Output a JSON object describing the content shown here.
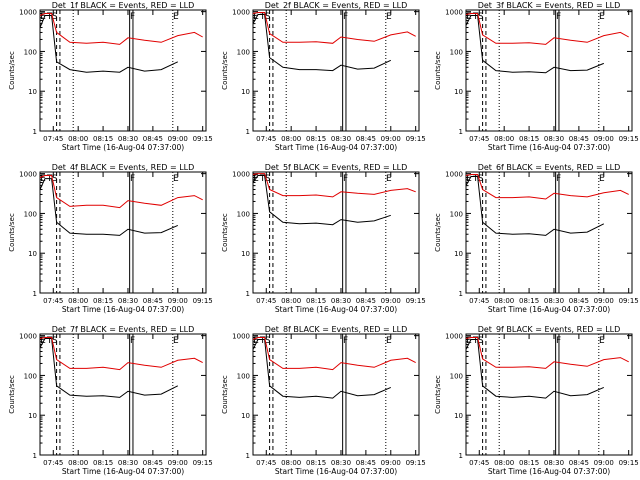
{
  "figure": {
    "xlabel": "Start Time (16-Aug-04 07:37:00)",
    "ylabel": "Counts/sec",
    "x_tick_labels": [
      "07:45",
      "08:00",
      "08:15",
      "08:30",
      "08:45",
      "09:00",
      "09:15"
    ],
    "y_tick_labels": [
      "1",
      "10",
      "100",
      "1000"
    ],
    "event_markers": [
      "E",
      "T",
      "S",
      "F",
      "E"
    ],
    "colors": {
      "events": "#000000",
      "lld": "#e00000"
    }
  },
  "chart_data": [
    {
      "type": "line",
      "title": "Det_1f BLACK = Events, RED = LLD",
      "x": [
        "07:37",
        "07:40",
        "07:44",
        "07:47",
        "07:55",
        "08:05",
        "08:15",
        "08:25",
        "08:30",
        "08:40",
        "08:50",
        "09:00",
        "09:10",
        "09:15"
      ],
      "xlim": [
        "07:37",
        "09:17"
      ],
      "ylim": [
        1,
        1100
      ],
      "yscale": "log",
      "series": [
        {
          "name": "Events",
          "values": [
            400,
            800,
            800,
            55,
            35,
            30,
            32,
            30,
            40,
            32,
            35,
            55,
            null,
            null
          ]
        },
        {
          "name": "LLD",
          "values": [
            800,
            900,
            900,
            300,
            170,
            160,
            170,
            150,
            220,
            190,
            170,
            250,
            300,
            230
          ]
        }
      ]
    },
    {
      "type": "line",
      "title": "Det_2f BLACK = Events, RED = LLD",
      "x": [
        "07:37",
        "07:40",
        "07:44",
        "07:47",
        "07:55",
        "08:05",
        "08:15",
        "08:25",
        "08:30",
        "08:40",
        "08:50",
        "09:00",
        "09:10",
        "09:15"
      ],
      "xlim": [
        "07:37",
        "09:17"
      ],
      "ylim": [
        1,
        1100
      ],
      "yscale": "log",
      "series": [
        {
          "name": "Events",
          "values": [
            500,
            850,
            850,
            70,
            40,
            35,
            35,
            33,
            45,
            36,
            38,
            60,
            null,
            null
          ]
        },
        {
          "name": "LLD",
          "values": [
            900,
            950,
            950,
            280,
            170,
            170,
            175,
            160,
            230,
            200,
            180,
            260,
            310,
            240
          ]
        }
      ]
    },
    {
      "type": "line",
      "title": "Det_3f BLACK = Events, RED = LLD",
      "x": [
        "07:37",
        "07:40",
        "07:44",
        "07:47",
        "07:55",
        "08:05",
        "08:15",
        "08:25",
        "08:30",
        "08:40",
        "08:50",
        "09:00",
        "09:10",
        "09:15"
      ],
      "xlim": [
        "07:37",
        "09:17"
      ],
      "ylim": [
        1,
        1100
      ],
      "yscale": "log",
      "series": [
        {
          "name": "Events",
          "values": [
            450,
            800,
            800,
            60,
            33,
            30,
            31,
            29,
            40,
            33,
            34,
            50,
            null,
            null
          ]
        },
        {
          "name": "LLD",
          "values": [
            850,
            900,
            900,
            260,
            160,
            160,
            165,
            150,
            220,
            190,
            170,
            250,
            300,
            230
          ]
        }
      ]
    },
    {
      "type": "line",
      "title": "Det_4f BLACK = Events, RED = LLD",
      "x": [
        "07:37",
        "07:40",
        "07:44",
        "07:47",
        "07:55",
        "08:05",
        "08:15",
        "08:25",
        "08:30",
        "08:40",
        "08:50",
        "09:00",
        "09:10",
        "09:15"
      ],
      "xlim": [
        "07:37",
        "09:17"
      ],
      "ylim": [
        1,
        1100
      ],
      "yscale": "log",
      "series": [
        {
          "name": "Events",
          "values": [
            400,
            750,
            750,
            60,
            32,
            30,
            30,
            28,
            40,
            32,
            33,
            50,
            null,
            null
          ]
        },
        {
          "name": "LLD",
          "values": [
            800,
            900,
            900,
            250,
            150,
            160,
            160,
            140,
            210,
            180,
            160,
            250,
            280,
            220
          ]
        }
      ]
    },
    {
      "type": "line",
      "title": "Det_5f BLACK = Events, RED = LLD",
      "x": [
        "07:37",
        "07:40",
        "07:44",
        "07:47",
        "07:55",
        "08:05",
        "08:15",
        "08:25",
        "08:30",
        "08:40",
        "08:50",
        "09:00",
        "09:10",
        "09:15"
      ],
      "xlim": [
        "07:37",
        "09:17"
      ],
      "ylim": [
        1,
        1100
      ],
      "yscale": "log",
      "series": [
        {
          "name": "Events",
          "values": [
            600,
            900,
            900,
            110,
            60,
            55,
            57,
            52,
            70,
            60,
            65,
            90,
            null,
            null
          ]
        },
        {
          "name": "LLD",
          "values": [
            950,
            1000,
            1000,
            400,
            280,
            280,
            290,
            260,
            350,
            320,
            300,
            380,
            420,
            350
          ]
        }
      ]
    },
    {
      "type": "line",
      "title": "Det_6f BLACK = Events, RED = LLD",
      "x": [
        "07:37",
        "07:40",
        "07:44",
        "07:47",
        "07:55",
        "08:05",
        "08:15",
        "08:25",
        "08:30",
        "08:40",
        "08:50",
        "09:00",
        "09:10",
        "09:15"
      ],
      "xlim": [
        "07:37",
        "09:17"
      ],
      "ylim": [
        1,
        1100
      ],
      "yscale": "log",
      "series": [
        {
          "name": "Events",
          "values": [
            500,
            850,
            850,
            60,
            32,
            30,
            31,
            28,
            40,
            32,
            34,
            55,
            null,
            null
          ]
        },
        {
          "name": "LLD",
          "values": [
            900,
            950,
            950,
            400,
            250,
            250,
            260,
            230,
            320,
            280,
            260,
            330,
            380,
            300
          ]
        }
      ]
    },
    {
      "type": "line",
      "title": "Det_7f BLACK = Events, RED = LLD",
      "x": [
        "07:37",
        "07:40",
        "07:44",
        "07:47",
        "07:55",
        "08:05",
        "08:15",
        "08:25",
        "08:30",
        "08:40",
        "08:50",
        "09:00",
        "09:10",
        "09:15"
      ],
      "xlim": [
        "07:37",
        "09:17"
      ],
      "ylim": [
        1,
        1100
      ],
      "yscale": "log",
      "series": [
        {
          "name": "Events",
          "values": [
            500,
            850,
            850,
            55,
            32,
            30,
            31,
            28,
            40,
            32,
            34,
            55,
            null,
            null
          ]
        },
        {
          "name": "LLD",
          "values": [
            850,
            900,
            900,
            250,
            150,
            150,
            160,
            140,
            210,
            180,
            160,
            240,
            270,
            210
          ]
        }
      ]
    },
    {
      "type": "line",
      "title": "Det_8f BLACK = Events, RED = LLD",
      "x": [
        "07:37",
        "07:40",
        "07:44",
        "07:47",
        "07:55",
        "08:05",
        "08:15",
        "08:25",
        "08:30",
        "08:40",
        "08:50",
        "09:00",
        "09:10",
        "09:15"
      ],
      "xlim": [
        "07:37",
        "09:17"
      ],
      "ylim": [
        1,
        1100
      ],
      "yscale": "log",
      "series": [
        {
          "name": "Events",
          "values": [
            450,
            800,
            800,
            55,
            30,
            28,
            30,
            27,
            40,
            31,
            33,
            50,
            null,
            null
          ]
        },
        {
          "name": "LLD",
          "values": [
            800,
            900,
            900,
            250,
            150,
            150,
            160,
            140,
            210,
            180,
            160,
            240,
            270,
            210
          ]
        }
      ]
    },
    {
      "type": "line",
      "title": "Det_9f BLACK = Events, RED = LLD",
      "x": [
        "07:37",
        "07:40",
        "07:44",
        "07:47",
        "07:55",
        "08:05",
        "08:15",
        "08:25",
        "08:30",
        "08:40",
        "08:50",
        "09:00",
        "09:10",
        "09:15"
      ],
      "xlim": [
        "07:37",
        "09:17"
      ],
      "ylim": [
        1,
        1100
      ],
      "yscale": "log",
      "series": [
        {
          "name": "Events",
          "values": [
            450,
            800,
            800,
            55,
            30,
            28,
            30,
            27,
            40,
            31,
            33,
            50,
            null,
            null
          ]
        },
        {
          "name": "LLD",
          "values": [
            850,
            900,
            900,
            260,
            160,
            160,
            165,
            150,
            220,
            190,
            170,
            250,
            280,
            220
          ]
        }
      ]
    }
  ]
}
